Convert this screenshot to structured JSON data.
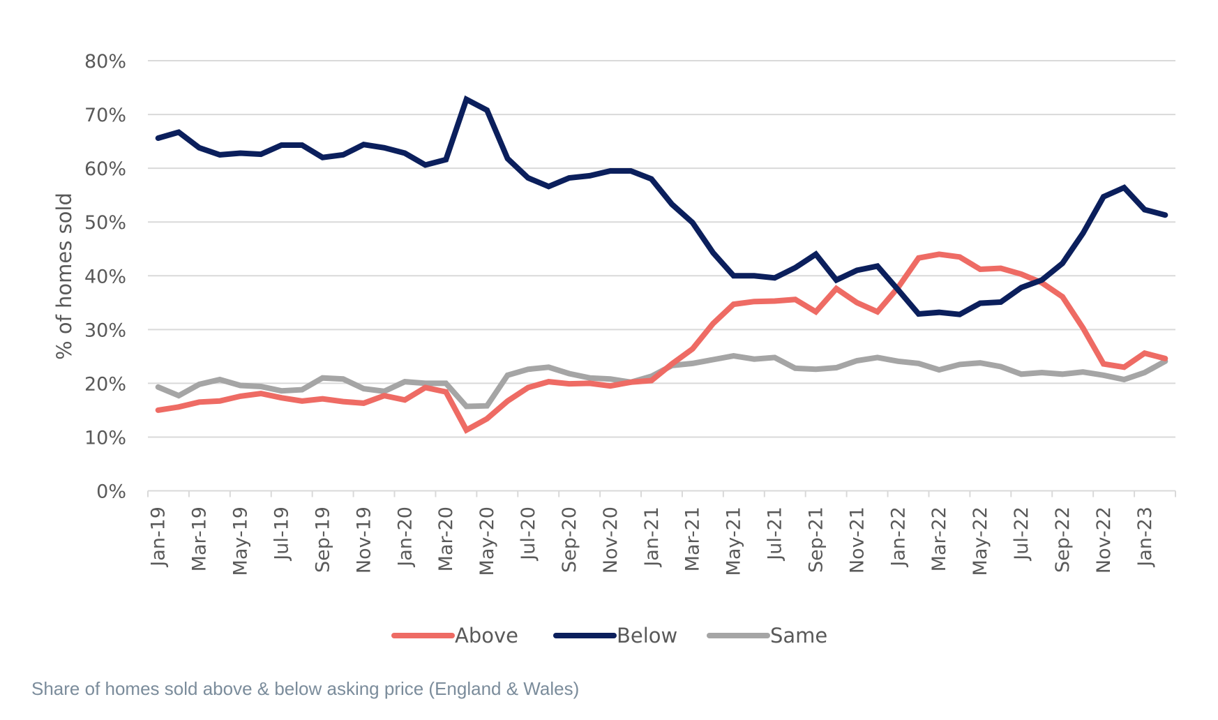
{
  "caption": "Share of homes sold above & below asking price (England & Wales)",
  "chart_data": {
    "type": "line",
    "title": "",
    "xlabel": "",
    "ylabel": "% of homes sold",
    "ylim": [
      0,
      80
    ],
    "yticks": [
      "0%",
      "10%",
      "20%",
      "30%",
      "40%",
      "50%",
      "60%",
      "70%",
      "80%"
    ],
    "ytick_values": [
      0,
      10,
      20,
      30,
      40,
      50,
      60,
      70,
      80
    ],
    "grid": true,
    "legend_position": "bottom",
    "x": [
      "Jan-19",
      "Feb-19",
      "Mar-19",
      "Apr-19",
      "May-19",
      "Jun-19",
      "Jul-19",
      "Aug-19",
      "Sep-19",
      "Oct-19",
      "Nov-19",
      "Dec-19",
      "Jan-20",
      "Feb-20",
      "Mar-20",
      "Apr-20",
      "May-20",
      "Jun-20",
      "Jul-20",
      "Aug-20",
      "Sep-20",
      "Oct-20",
      "Nov-20",
      "Dec-20",
      "Jan-21",
      "Feb-21",
      "Mar-21",
      "Apr-21",
      "May-21",
      "Jun-21",
      "Jul-21",
      "Aug-21",
      "Sep-21",
      "Oct-21",
      "Nov-21",
      "Dec-21",
      "Jan-22",
      "Feb-22",
      "Mar-22",
      "Apr-22",
      "May-22",
      "Jun-22",
      "Jul-22",
      "Aug-22",
      "Sep-22",
      "Oct-22",
      "Nov-22",
      "Dec-22",
      "Jan-23",
      "Feb-23"
    ],
    "xtick_labels_every": 2,
    "series": [
      {
        "name": "Above",
        "color": "#ee6b64",
        "values": [
          15.0,
          15.6,
          16.5,
          16.7,
          17.6,
          18.1,
          17.3,
          16.7,
          17.1,
          16.6,
          16.3,
          17.7,
          16.9,
          19.2,
          18.4,
          11.3,
          13.4,
          16.7,
          19.2,
          20.3,
          19.9,
          20.0,
          19.5,
          20.2,
          20.5,
          23.6,
          26.4,
          31.1,
          34.7,
          35.2,
          35.3,
          35.6,
          33.3,
          37.6,
          35.0,
          33.3,
          37.8,
          43.3,
          44.0,
          43.5,
          41.2,
          41.4,
          40.3,
          38.7,
          36.1,
          30.3,
          23.6,
          23.0,
          25.6,
          24.6
        ]
      },
      {
        "name": "Below",
        "color": "#0b1f5c",
        "values": [
          65.6,
          66.7,
          63.8,
          62.5,
          62.8,
          62.6,
          64.3,
          64.3,
          62.0,
          62.5,
          64.4,
          63.8,
          62.8,
          60.6,
          61.6,
          72.8,
          70.8,
          61.8,
          58.2,
          56.6,
          58.2,
          58.6,
          59.5,
          59.5,
          58.0,
          53.3,
          49.9,
          44.3,
          40.0,
          40.0,
          39.6,
          41.5,
          44.0,
          39.2,
          41.0,
          41.8,
          37.4,
          32.9,
          33.2,
          32.8,
          34.9,
          35.1,
          37.8,
          39.2,
          42.3,
          47.9,
          54.7,
          56.4,
          52.3,
          51.3
        ]
      },
      {
        "name": "Same",
        "color": "#a5a5a5",
        "values": [
          19.3,
          17.7,
          19.8,
          20.7,
          19.6,
          19.4,
          18.6,
          18.8,
          21.0,
          20.8,
          19.0,
          18.5,
          20.3,
          20.0,
          20.0,
          15.7,
          15.8,
          21.5,
          22.6,
          23.0,
          21.8,
          21.0,
          20.8,
          20.2,
          21.3,
          23.3,
          23.7,
          24.4,
          25.1,
          24.5,
          24.8,
          22.8,
          22.6,
          22.9,
          24.2,
          24.8,
          24.1,
          23.7,
          22.5,
          23.5,
          23.8,
          23.1,
          21.7,
          22.0,
          21.7,
          22.1,
          21.5,
          20.7,
          22.0,
          24.1
        ]
      }
    ]
  }
}
